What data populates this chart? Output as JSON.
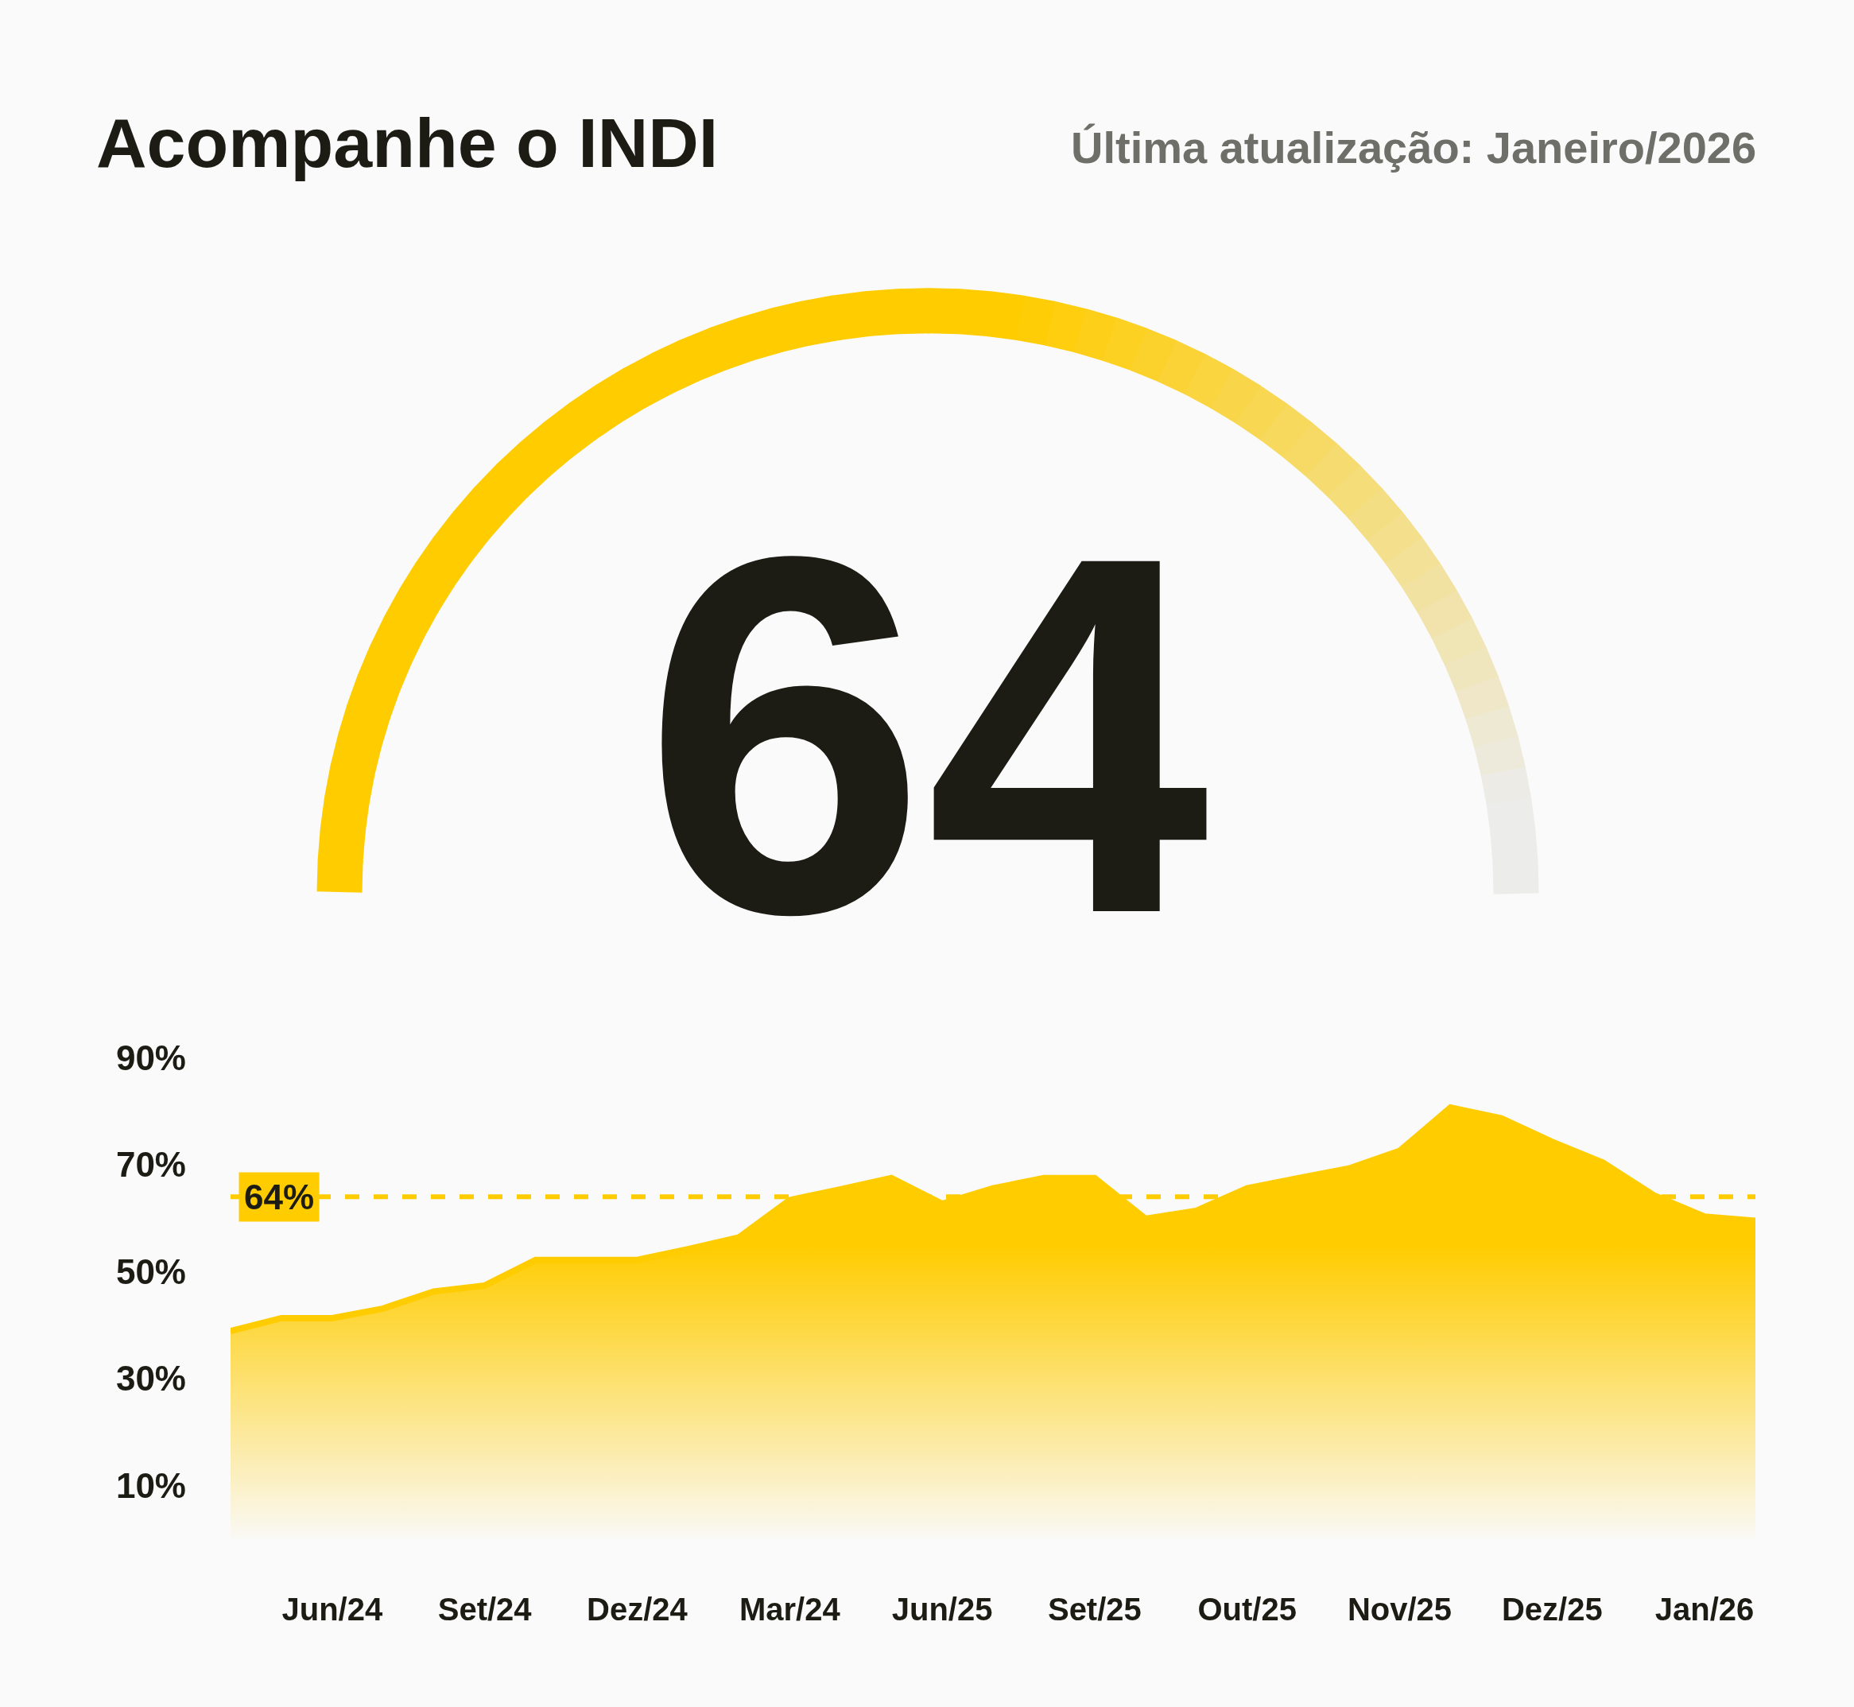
{
  "chart_data": [
    {
      "type": "other",
      "title": "Acompanhe o INDI",
      "subtitle": "Última atualização: Janeiro/2026",
      "annotations": [
        "64"
      ]
    },
    {
      "type": "area",
      "color": "#ffcc00",
      "categories": [
        null,
        null,
        "Jun/24",
        null,
        null,
        "Set/24",
        null,
        null,
        "Dez/24",
        null,
        null,
        "Mar/24",
        null,
        null,
        "Jun/25",
        null,
        null,
        "Set/25",
        null,
        null,
        "Out/25",
        null,
        null,
        "Nov/25",
        null,
        null,
        "Dez/25",
        null,
        null,
        "Jan/26",
        null
      ],
      "values": [
        38.9,
        41.3,
        41.3,
        43.1,
        46.3,
        47.4,
        52.2,
        52.2,
        52.2,
        54.2,
        56.4,
        63.4,
        65.4,
        67.5,
        62.7,
        65.6,
        67.5,
        67.5,
        59.9,
        61.4,
        65.6,
        67.5,
        69.3,
        72.6,
        80.7,
        78.7,
        74.3,
        70.4,
        64.3,
        60.3,
        59.5
      ],
      "ylim": [
        0,
        90
      ],
      "yticks": [
        {
          "value": 10,
          "label": "10%"
        },
        {
          "value": 30,
          "label": "30%"
        },
        {
          "value": 50,
          "label": "50%"
        },
        {
          "value": 70,
          "label": "70%"
        },
        {
          "value": 90,
          "label": "90%"
        }
      ],
      "ref_lines": [
        {
          "axis": "y",
          "value": 64,
          "label": "64%",
          "color": "#ffcc00",
          "line_style": "dashed"
        }
      ],
      "grid": false
    }
  ]
}
